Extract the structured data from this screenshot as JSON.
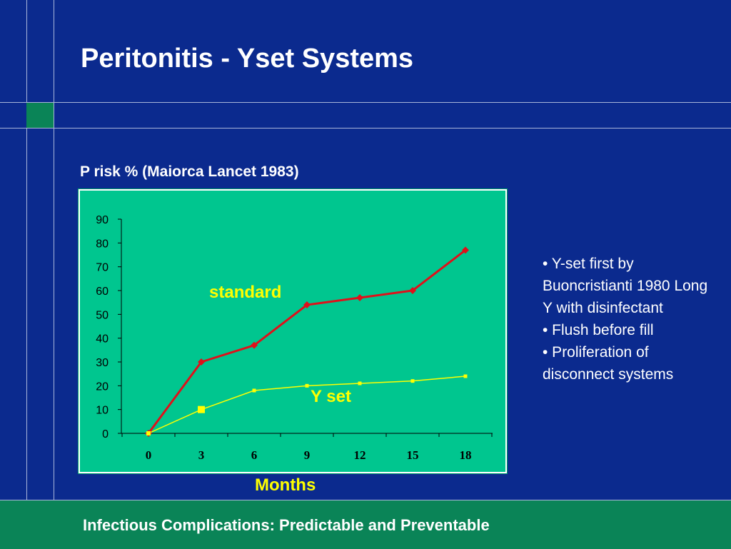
{
  "slide": {
    "title": "Peritonitis - Yset Systems",
    "bullets": [
      "• Y-set first by Buoncristianti 1980 Long Y with disinfectant",
      "• Flush before fill",
      "• Proliferation of disconnect systems"
    ],
    "footer": "Infectious Complications: Predictable and Preventable"
  },
  "colors": {
    "background": "#0B2A8E",
    "plot_area": "#00C68F",
    "standard": "#E0101A",
    "yset": "#FFFF00",
    "footer_band": "#0A8457"
  },
  "chart_data": {
    "type": "line",
    "title": "P risk % (Maiorca Lancet 1983)",
    "xlabel": "Months",
    "ylabel": "",
    "x": [
      0,
      3,
      6,
      9,
      12,
      15,
      18
    ],
    "xlim": [
      0,
      18
    ],
    "ylim": [
      0,
      90
    ],
    "yticks": [
      0,
      10,
      20,
      30,
      40,
      50,
      60,
      70,
      80,
      90
    ],
    "grid": false,
    "series": [
      {
        "name": "standard",
        "values": [
          0,
          30,
          37,
          54,
          57,
          60,
          77
        ]
      },
      {
        "name": "Y set",
        "values": [
          0,
          10,
          18,
          20,
          21,
          22,
          24
        ]
      }
    ]
  }
}
